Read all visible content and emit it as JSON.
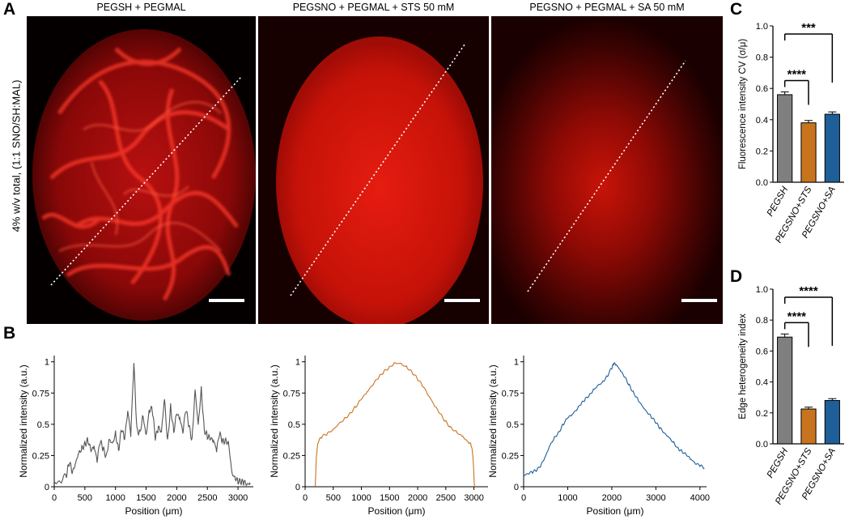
{
  "panel_letters": {
    "a": "A",
    "b": "B",
    "c": "C",
    "d": "D"
  },
  "row_label": "4% w/v total, (1:1 SNO/SH:MAL)",
  "images": [
    {
      "title": "PEGSH + PEGMAL"
    },
    {
      "title": "PEGSNO + PEGMAL + STS 50 mM"
    },
    {
      "title": "PEGSNO + PEGMAL + SA 50 mM"
    }
  ],
  "chart_data": [
    {
      "id": "B1",
      "type": "line",
      "xlabel": "Position (μm)",
      "ylabel": "Normalized intensity (a.u.)",
      "xlim": [
        0,
        3250
      ],
      "ylim": [
        0,
        1.05
      ],
      "x_ticks": [
        "0",
        "500",
        "1000",
        "1500",
        "2000",
        "2500",
        "3000"
      ],
      "y_ticks": [
        "0",
        "0.25",
        "0.5",
        "0.75",
        "1"
      ],
      "color": "#555555",
      "x": [
        0,
        100,
        200,
        250,
        300,
        350,
        400,
        450,
        500,
        550,
        600,
        650,
        700,
        750,
        800,
        850,
        900,
        950,
        1000,
        1050,
        1100,
        1150,
        1200,
        1250,
        1300,
        1350,
        1400,
        1450,
        1500,
        1550,
        1600,
        1650,
        1700,
        1750,
        1800,
        1850,
        1900,
        1950,
        2000,
        2050,
        2100,
        2150,
        2200,
        2250,
        2300,
        2350,
        2400,
        2450,
        2500,
        2550,
        2600,
        2650,
        2700,
        2750,
        2800,
        2850,
        2900,
        2950,
        3000,
        3050,
        3100,
        3150,
        3200
      ],
      "y": [
        0.03,
        0.05,
        0.1,
        0.19,
        0.12,
        0.2,
        0.26,
        0.3,
        0.35,
        0.37,
        0.28,
        0.33,
        0.22,
        0.36,
        0.3,
        0.25,
        0.38,
        0.33,
        0.43,
        0.3,
        0.46,
        0.38,
        0.62,
        0.42,
        0.98,
        0.45,
        0.44,
        0.56,
        0.4,
        0.62,
        0.63,
        0.38,
        0.48,
        0.45,
        0.7,
        0.35,
        0.65,
        0.44,
        0.58,
        0.55,
        0.45,
        0.62,
        0.48,
        0.38,
        0.78,
        0.48,
        0.78,
        0.46,
        0.4,
        0.38,
        0.38,
        0.3,
        0.42,
        0.36,
        0.38,
        0.33,
        0.1,
        0.08,
        0.05,
        0.03,
        0.04,
        0.03,
        0.02
      ]
    },
    {
      "id": "B2",
      "type": "line",
      "xlabel": "Position (μm)",
      "ylabel": "Normalized intensity (a.u.)",
      "xlim": [
        0,
        3250
      ],
      "ylim": [
        0,
        1.05
      ],
      "x_ticks": [
        "0",
        "500",
        "1000",
        "1500",
        "2000",
        "2500",
        "3000"
      ],
      "y_ticks": [
        "0",
        "0.25",
        "0.5",
        "0.75",
        "1"
      ],
      "color": "#c8741e",
      "x": [
        180,
        200,
        230,
        300,
        400,
        500,
        600,
        700,
        800,
        900,
        1000,
        1100,
        1200,
        1300,
        1400,
        1500,
        1600,
        1700,
        1800,
        1900,
        2000,
        2100,
        2200,
        2300,
        2400,
        2500,
        2600,
        2700,
        2800,
        2900,
        2950,
        2980,
        3010
      ],
      "y": [
        0.0,
        0.25,
        0.36,
        0.4,
        0.43,
        0.46,
        0.5,
        0.54,
        0.59,
        0.64,
        0.7,
        0.76,
        0.82,
        0.87,
        0.92,
        0.96,
        0.99,
        0.98,
        0.96,
        0.92,
        0.86,
        0.8,
        0.73,
        0.65,
        0.58,
        0.52,
        0.47,
        0.43,
        0.4,
        0.36,
        0.34,
        0.25,
        0.0
      ]
    },
    {
      "id": "B3",
      "type": "line",
      "xlabel": "Position (μm)",
      "ylabel": "Normalized intensity (a.u.)",
      "xlim": [
        0,
        4150
      ],
      "ylim": [
        0,
        1.05
      ],
      "x_ticks": [
        "0",
        "1000",
        "2000",
        "3000",
        "4000"
      ],
      "y_ticks": [
        "0",
        "0.25",
        "0.5",
        "0.75",
        "1"
      ],
      "color": "#1f5f99",
      "x": [
        0,
        100,
        200,
        300,
        400,
        500,
        600,
        700,
        800,
        900,
        1000,
        1100,
        1200,
        1300,
        1400,
        1500,
        1600,
        1700,
        1800,
        1900,
        2000,
        2050,
        2100,
        2200,
        2300,
        2400,
        2500,
        2600,
        2700,
        2800,
        2900,
        3000,
        3100,
        3200,
        3300,
        3400,
        3500,
        3600,
        3700,
        3800,
        3900,
        4000,
        4100
      ],
      "y": [
        0.09,
        0.11,
        0.12,
        0.13,
        0.18,
        0.25,
        0.33,
        0.39,
        0.44,
        0.5,
        0.55,
        0.58,
        0.62,
        0.66,
        0.7,
        0.74,
        0.78,
        0.81,
        0.84,
        0.89,
        0.95,
        0.99,
        0.98,
        0.93,
        0.87,
        0.81,
        0.75,
        0.69,
        0.64,
        0.6,
        0.56,
        0.51,
        0.47,
        0.43,
        0.39,
        0.35,
        0.31,
        0.28,
        0.25,
        0.22,
        0.19,
        0.17,
        0.15
      ]
    },
    {
      "id": "C",
      "type": "bar",
      "ylabel": "Fluorescence intensity CV (σ/μ)",
      "ylim": [
        0,
        1.0
      ],
      "y_ticks": [
        "0.0",
        "0.2",
        "0.4",
        "0.6",
        "0.8",
        "1.0"
      ],
      "categories": [
        "PEGSH",
        "PEGSNO+STS",
        "PEGSNO+SA"
      ],
      "values": [
        0.56,
        0.38,
        0.435
      ],
      "errors": [
        0.018,
        0.015,
        0.015
      ],
      "colors": [
        "#7f7f7f",
        "#c8741e",
        "#1f5f99"
      ],
      "significance": [
        {
          "from": 0,
          "to": 1,
          "label": "****"
        },
        {
          "from": 0,
          "to": 2,
          "label": "***"
        }
      ]
    },
    {
      "id": "D",
      "type": "bar",
      "ylabel": "Edge heterogeneity index",
      "ylim": [
        0,
        1.0
      ],
      "y_ticks": [
        "0.0",
        "0.2",
        "0.4",
        "0.6",
        "0.8",
        "1.0"
      ],
      "categories": [
        "PEGSH",
        "PEGSNO+STS",
        "PEGSNO+SA"
      ],
      "values": [
        0.69,
        0.225,
        0.28
      ],
      "errors": [
        0.02,
        0.012,
        0.012
      ],
      "colors": [
        "#7f7f7f",
        "#c8741e",
        "#1f5f99"
      ],
      "significance": [
        {
          "from": 0,
          "to": 1,
          "label": "****"
        },
        {
          "from": 0,
          "to": 2,
          "label": "****"
        }
      ]
    }
  ]
}
